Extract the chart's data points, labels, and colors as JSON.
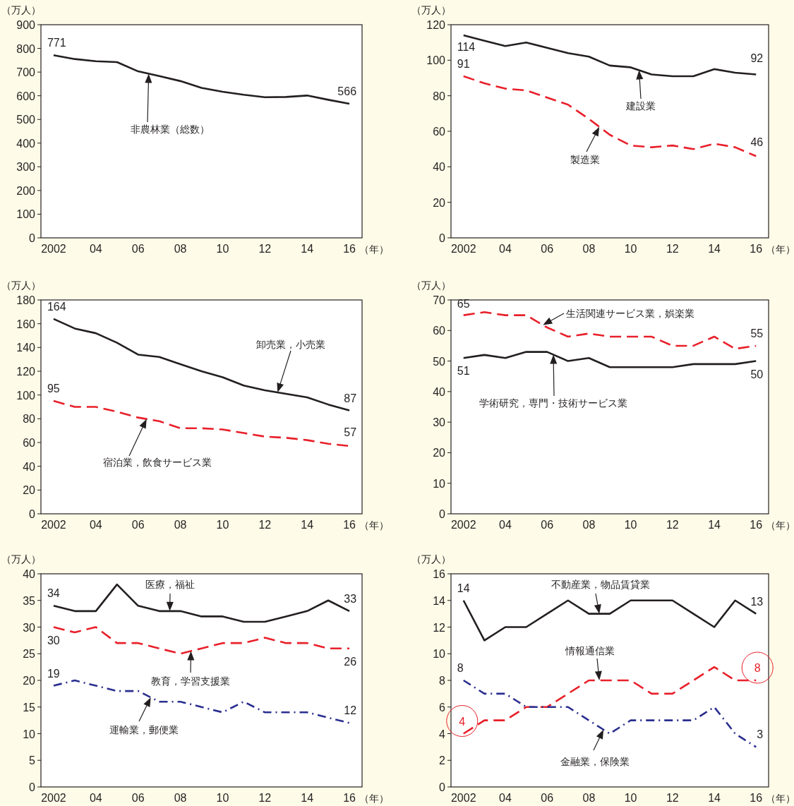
{
  "chart_data": [
    {
      "type": "line",
      "xlabel": "（年）",
      "ylabel": "（万人）",
      "x": [
        2002,
        2003,
        2004,
        2005,
        2006,
        2007,
        2008,
        2009,
        2010,
        2011,
        2012,
        2013,
        2014,
        2015,
        2016
      ],
      "xlim": [
        2001.4,
        2016.6
      ],
      "xticks": [
        {
          "value": 2002,
          "label": "2002"
        },
        {
          "value": 2004,
          "label": "04"
        },
        {
          "value": 2006,
          "label": "06"
        },
        {
          "value": 2008,
          "label": "08"
        },
        {
          "value": 2010,
          "label": "10"
        },
        {
          "value": 2012,
          "label": "12"
        },
        {
          "value": 2014,
          "label": "14"
        },
        {
          "value": 2016,
          "label": "16"
        }
      ],
      "ylim": [
        0,
        900
      ],
      "yticks": [
        0,
        100,
        200,
        300,
        400,
        500,
        600,
        700,
        800,
        900
      ],
      "series": [
        {
          "color": "#231f20",
          "line_style": "solid",
          "values": [
            771,
            755,
            746,
            742,
            703,
            683,
            662,
            633,
            617,
            604,
            594,
            595,
            601,
            583,
            566
          ],
          "value_labels": [
            "771",
            null,
            null,
            null,
            null,
            null,
            null,
            null,
            null,
            null,
            null,
            null,
            null,
            null,
            "566"
          ]
        }
      ],
      "annotations": [
        "非農林業（総数）"
      ]
    },
    {
      "type": "line",
      "xlabel": "（年）",
      "ylabel": "（万人）",
      "x": [
        2002,
        2003,
        2004,
        2005,
        2006,
        2007,
        2008,
        2009,
        2010,
        2011,
        2012,
        2013,
        2014,
        2015,
        2016
      ],
      "xlim": [
        2001.4,
        2016.6
      ],
      "xticks": [
        {
          "value": 2002,
          "label": "2002"
        },
        {
          "value": 2004,
          "label": "04"
        },
        {
          "value": 2006,
          "label": "06"
        },
        {
          "value": 2008,
          "label": "08"
        },
        {
          "value": 2010,
          "label": "10"
        },
        {
          "value": 2012,
          "label": "12"
        },
        {
          "value": 2014,
          "label": "14"
        },
        {
          "value": 2016,
          "label": "16"
        }
      ],
      "ylim": [
        0,
        120
      ],
      "yticks": [
        0,
        20,
        40,
        60,
        80,
        100,
        120
      ],
      "series": [
        {
          "color": "#231f20",
          "line_style": "solid",
          "values": [
            114,
            111,
            108,
            110,
            107,
            104,
            102,
            97,
            96,
            92,
            91,
            91,
            95,
            93,
            92
          ],
          "value_labels": [
            "114",
            null,
            null,
            null,
            null,
            null,
            null,
            null,
            null,
            null,
            null,
            null,
            null,
            null,
            "92"
          ]
        },
        {
          "color": "#e8202a",
          "line_style": "dashed",
          "values": [
            91,
            87,
            84,
            83,
            79,
            75,
            67,
            58,
            52,
            51,
            52,
            50,
            53,
            51,
            46
          ],
          "value_labels": [
            "91",
            null,
            null,
            null,
            null,
            null,
            null,
            null,
            null,
            null,
            null,
            null,
            null,
            null,
            "46"
          ]
        }
      ],
      "annotations": [
        "建設業",
        {
          "text": "製造業",
          "x": 2008.5,
          "y": 62.5
        }
      ]
    },
    {
      "type": "line",
      "xlabel": "（年）",
      "ylabel": "（万人）",
      "x": [
        2002,
        2003,
        2004,
        2005,
        2006,
        2007,
        2008,
        2009,
        2010,
        2011,
        2012,
        2013,
        2014,
        2015,
        2016
      ],
      "xlim": [
        2001.4,
        2016.6
      ],
      "xticks": [
        {
          "value": 2002,
          "label": "2002"
        },
        {
          "value": 2004,
          "label": "04"
        },
        {
          "value": 2006,
          "label": "06"
        },
        {
          "value": 2008,
          "label": "08"
        },
        {
          "value": 2010,
          "label": "10"
        },
        {
          "value": 2012,
          "label": "12"
        },
        {
          "value": 2014,
          "label": "14"
        },
        {
          "value": 2016,
          "label": "16"
        }
      ],
      "ylim": [
        0,
        180
      ],
      "yticks": [
        0,
        20,
        40,
        60,
        80,
        100,
        120,
        140,
        160,
        180
      ],
      "series": [
        {
          "color": "#231f20",
          "line_style": "solid",
          "values": [
            164,
            156,
            152,
            144,
            134,
            132,
            126,
            120,
            115,
            108,
            104,
            101,
            98,
            92,
            87
          ],
          "value_labels": [
            "164",
            null,
            null,
            null,
            null,
            null,
            null,
            null,
            null,
            null,
            null,
            null,
            null,
            null,
            "87"
          ]
        },
        {
          "color": "#e8202a",
          "line_style": "dashed",
          "values": [
            95,
            90,
            90,
            86,
            81,
            78,
            72,
            72,
            71,
            68,
            65,
            64,
            62,
            59,
            57
          ],
          "value_labels": [
            "95",
            null,
            null,
            null,
            null,
            null,
            null,
            null,
            null,
            null,
            null,
            null,
            null,
            null,
            "57"
          ]
        }
      ],
      "annotations": [
        "卸売業，小売業",
        "宿泊業，飲食サービス業"
      ]
    },
    {
      "type": "line",
      "xlabel": "（年）",
      "ylabel": "（万人）",
      "x": [
        2002,
        2003,
        2004,
        2005,
        2006,
        2007,
        2008,
        2009,
        2010,
        2011,
        2012,
        2013,
        2014,
        2015,
        2016
      ],
      "xlim": [
        2001.4,
        2016.6
      ],
      "xticks": [
        {
          "value": 2002,
          "label": "2002"
        },
        {
          "value": 2004,
          "label": "04"
        },
        {
          "value": 2006,
          "label": "06"
        },
        {
          "value": 2008,
          "label": "08"
        },
        {
          "value": 2010,
          "label": "10"
        },
        {
          "value": 2012,
          "label": "12"
        },
        {
          "value": 2014,
          "label": "14"
        },
        {
          "value": 2016,
          "label": "16"
        }
      ],
      "ylim": [
        0,
        70
      ],
      "yticks": [
        0,
        10,
        20,
        30,
        40,
        50,
        60,
        70
      ],
      "series": [
        {
          "color": "#e8202a",
          "line_style": "dashed",
          "values": [
            65,
            66,
            65,
            65,
            61,
            58,
            59,
            58,
            58,
            58,
            55,
            55,
            58,
            54,
            55
          ],
          "value_labels": [
            "65",
            null,
            null,
            null,
            null,
            null,
            null,
            null,
            null,
            null,
            null,
            null,
            null,
            null,
            "55"
          ]
        },
        {
          "color": "#231f20",
          "line_style": "solid",
          "values": [
            51,
            52,
            51,
            53,
            53,
            50,
            51,
            48,
            48,
            48,
            48,
            49,
            49,
            49,
            50
          ],
          "value_labels": [
            "51",
            null,
            null,
            null,
            null,
            null,
            null,
            null,
            null,
            null,
            null,
            null,
            null,
            null,
            "50"
          ]
        }
      ],
      "annotations": [
        {
          "text": "生活関連サービス業，娯楽業",
          "x": 2005.8,
          "y": 61.8
        },
        "学術研究，専門・技術サービス業"
      ]
    },
    {
      "type": "line",
      "xlabel": "（年）",
      "ylabel": "（万人）",
      "x": [
        2002,
        2003,
        2004,
        2005,
        2006,
        2007,
        2008,
        2009,
        2010,
        2011,
        2012,
        2013,
        2014,
        2015,
        2016
      ],
      "xlim": [
        2001.4,
        2016.6
      ],
      "xticks": [
        {
          "value": 2002,
          "label": "2002"
        },
        {
          "value": 2004,
          "label": "04"
        },
        {
          "value": 2006,
          "label": "06"
        },
        {
          "value": 2008,
          "label": "08"
        },
        {
          "value": 2010,
          "label": "10"
        },
        {
          "value": 2012,
          "label": "12"
        },
        {
          "value": 2014,
          "label": "14"
        },
        {
          "value": 2016,
          "label": "16"
        }
      ],
      "ylim": [
        0,
        40
      ],
      "yticks": [
        0,
        5,
        10,
        15,
        20,
        25,
        30,
        35,
        40
      ],
      "series": [
        {
          "color": "#231f20",
          "line_style": "solid",
          "values": [
            34,
            33,
            33,
            38,
            34,
            33,
            33,
            32,
            32,
            31,
            31,
            32,
            33,
            35,
            33
          ],
          "value_labels": [
            "34",
            null,
            null,
            null,
            null,
            null,
            null,
            null,
            null,
            null,
            null,
            null,
            null,
            null,
            "33"
          ]
        },
        {
          "color": "#e8202a",
          "line_style": "dashed",
          "values": [
            30,
            29,
            30,
            27,
            27,
            26,
            25,
            26,
            27,
            27,
            28,
            27,
            27,
            26,
            26
          ],
          "value_labels": [
            "30",
            null,
            null,
            null,
            null,
            null,
            null,
            null,
            null,
            null,
            null,
            null,
            null,
            null,
            "26"
          ]
        },
        {
          "color": "#2a2f8f",
          "line_style": "dashdot",
          "values": [
            19,
            20,
            19,
            18,
            18,
            16,
            16,
            15,
            14,
            16,
            14,
            14,
            14,
            13,
            12
          ],
          "value_labels": [
            "19",
            null,
            null,
            null,
            null,
            null,
            null,
            null,
            null,
            null,
            null,
            null,
            null,
            null,
            "12"
          ]
        }
      ],
      "annotations": [
        {
          "text": "医療，福祉",
          "x": 2007.5,
          "y": 33
        },
        {
          "text": "教育，学習支援業",
          "x": 2008.5,
          "y": 25.5
        },
        {
          "text": "運輸業，郵便業",
          "x": 2006.6,
          "y": 16.8
        }
      ]
    },
    {
      "type": "line",
      "xlabel": "（年）",
      "ylabel": "（万人）",
      "x": [
        2002,
        2003,
        2004,
        2005,
        2006,
        2007,
        2008,
        2009,
        2010,
        2011,
        2012,
        2013,
        2014,
        2015,
        2016
      ],
      "xlim": [
        2001.4,
        2016.6
      ],
      "xticks": [
        {
          "value": 2002,
          "label": "2002"
        },
        {
          "value": 2004,
          "label": "04"
        },
        {
          "value": 2006,
          "label": "06"
        },
        {
          "value": 2008,
          "label": "08"
        },
        {
          "value": 2010,
          "label": "10"
        },
        {
          "value": 2012,
          "label": "12"
        },
        {
          "value": 2014,
          "label": "14"
        },
        {
          "value": 2016,
          "label": "16"
        }
      ],
      "ylim": [
        0,
        16
      ],
      "yticks": [
        0,
        2,
        4,
        6,
        8,
        10,
        12,
        14,
        16
      ],
      "series": [
        {
          "color": "#231f20",
          "line_style": "solid",
          "values": [
            14,
            11,
            12,
            12,
            13,
            14,
            13,
            13,
            14,
            14,
            14,
            13,
            12,
            14,
            13
          ],
          "value_labels": [
            "14",
            null,
            null,
            null,
            null,
            null,
            null,
            null,
            null,
            null,
            null,
            null,
            null,
            null,
            "13"
          ]
        },
        {
          "color": "#e8202a",
          "line_style": "dashed",
          "values": [
            4,
            5,
            5,
            6,
            6,
            7,
            8,
            8,
            8,
            7,
            7,
            8,
            9,
            8,
            8
          ]
        },
        {
          "color": "#2a2f8f",
          "line_style": "dashdot",
          "values": [
            8,
            7,
            7,
            6,
            6,
            6,
            5,
            4,
            5,
            5,
            5,
            5,
            6,
            4,
            3
          ],
          "value_labels": [
            "8",
            null,
            null,
            null,
            null,
            null,
            null,
            null,
            null,
            null,
            null,
            null,
            null,
            null,
            "3"
          ]
        }
      ],
      "annotations": [
        {
          "text": "不動産業，物品賃貸業",
          "x": 2008.5,
          "y": 13
        },
        {
          "text": "情報通信業",
          "x": 2008.5,
          "y": 8
        },
        {
          "text": "金融業，保険業",
          "x": 2008.7,
          "y": 4.3
        },
        {
          "text": "4",
          "x": 2002,
          "y": 4
        },
        {
          "text": "8",
          "x": 2016,
          "y": 8
        }
      ]
    }
  ]
}
